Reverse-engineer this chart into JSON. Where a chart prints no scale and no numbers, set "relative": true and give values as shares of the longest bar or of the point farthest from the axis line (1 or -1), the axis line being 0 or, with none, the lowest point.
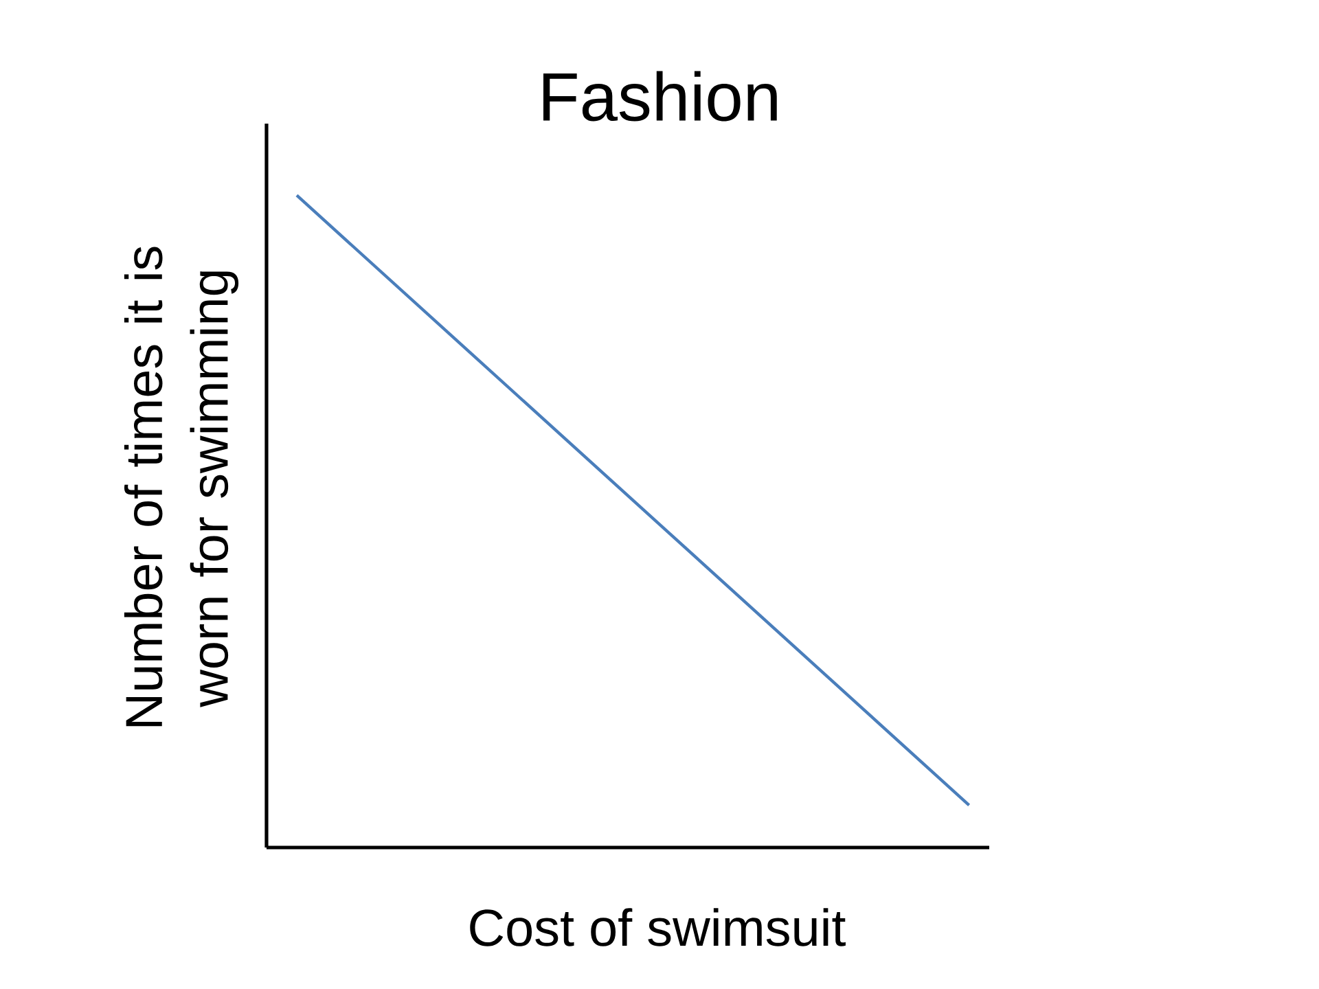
{
  "chart_data": {
    "type": "line",
    "title": "Fashion",
    "xlabel": "Cost of swimsuit",
    "ylabel": "Number of times it is worn for swimming",
    "relative": true,
    "categories": [
      null,
      null
    ],
    "series": [
      {
        "color": "#4a7ebb",
        "values": [
          1,
          0.065
        ]
      }
    ]
  }
}
